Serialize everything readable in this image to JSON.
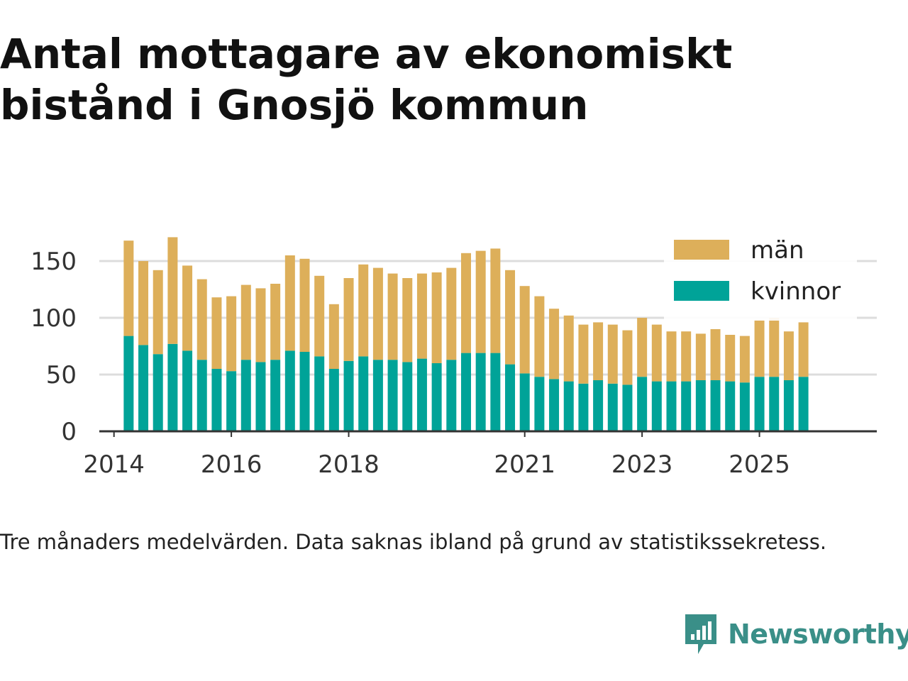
{
  "title": "Antal mottagare av ekonomiskt bistånd i Gnosjö kommun",
  "caption": "Tre månaders medelvärden. Data saknas ibland på grund av statistikssekretess.",
  "brand": {
    "name": "Newsworthy",
    "icon": "newsworthy-logo-icon",
    "color": "#3a8f88"
  },
  "colors": {
    "man": "#ddaf5a",
    "kvinnor": "#00a398",
    "grid": "#dddddd",
    "axis": "#333333"
  },
  "chart_data": {
    "type": "bar",
    "stacked": true,
    "title": "Antal mottagare av ekonomiskt bistånd i Gnosjö kommun",
    "xlabel": "",
    "ylabel": "",
    "ylim": [
      0,
      170
    ],
    "yticks": [
      0,
      50,
      100,
      150
    ],
    "xticks": [
      "2014",
      "2016",
      "2018",
      "2021",
      "2023",
      "2025"
    ],
    "x_tick_positions": [
      2014.0,
      2016.0,
      2018.0,
      2021.0,
      2023.0,
      2025.0
    ],
    "xlim": [
      2013.75,
      2027.0
    ],
    "grid": true,
    "legend_position": "top-right",
    "x": [
      2014.25,
      2014.5,
      2014.75,
      2015.0,
      2015.25,
      2015.5,
      2015.75,
      2016.0,
      2016.25,
      2016.5,
      2016.75,
      2017.0,
      2017.25,
      2017.5,
      2017.75,
      2018.0,
      2018.25,
      2018.5,
      2018.75,
      2019.0,
      2019.25,
      2019.5,
      2019.75,
      2020.0,
      2020.25,
      2020.5,
      2020.75,
      2021.0,
      2021.25,
      2021.5,
      2021.75,
      2022.0,
      2022.25,
      2022.5,
      2022.75,
      2023.0,
      2023.25,
      2023.5,
      2023.75,
      2024.0,
      2024.25,
      2024.5,
      2024.75,
      2025.0,
      2025.25,
      2025.5,
      2025.75
    ],
    "series": [
      {
        "name": "kvinnor",
        "color": "#00a398",
        "values": [
          84,
          76,
          68,
          77,
          71,
          63,
          55,
          53,
          63,
          61,
          63,
          71,
          70,
          66,
          55,
          62,
          66,
          63,
          63,
          61,
          64,
          60,
          63,
          69,
          69,
          69,
          59,
          51,
          48,
          46,
          44,
          42,
          45,
          42,
          41,
          48,
          44,
          44,
          44,
          45,
          45,
          44,
          43,
          48,
          48,
          45,
          48
        ]
      },
      {
        "name": "män",
        "color": "#ddaf5a",
        "values": [
          84,
          74,
          74,
          94,
          75,
          71,
          63,
          66,
          66,
          65,
          67,
          84,
          82,
          71,
          57,
          73,
          81,
          81,
          76,
          74,
          75,
          80,
          81,
          88,
          90,
          92,
          83,
          77,
          71,
          62,
          58,
          52,
          51,
          52,
          48,
          52,
          50,
          44,
          44,
          41,
          45,
          41,
          41,
          50,
          52,
          43,
          48
        ]
      }
    ]
  }
}
